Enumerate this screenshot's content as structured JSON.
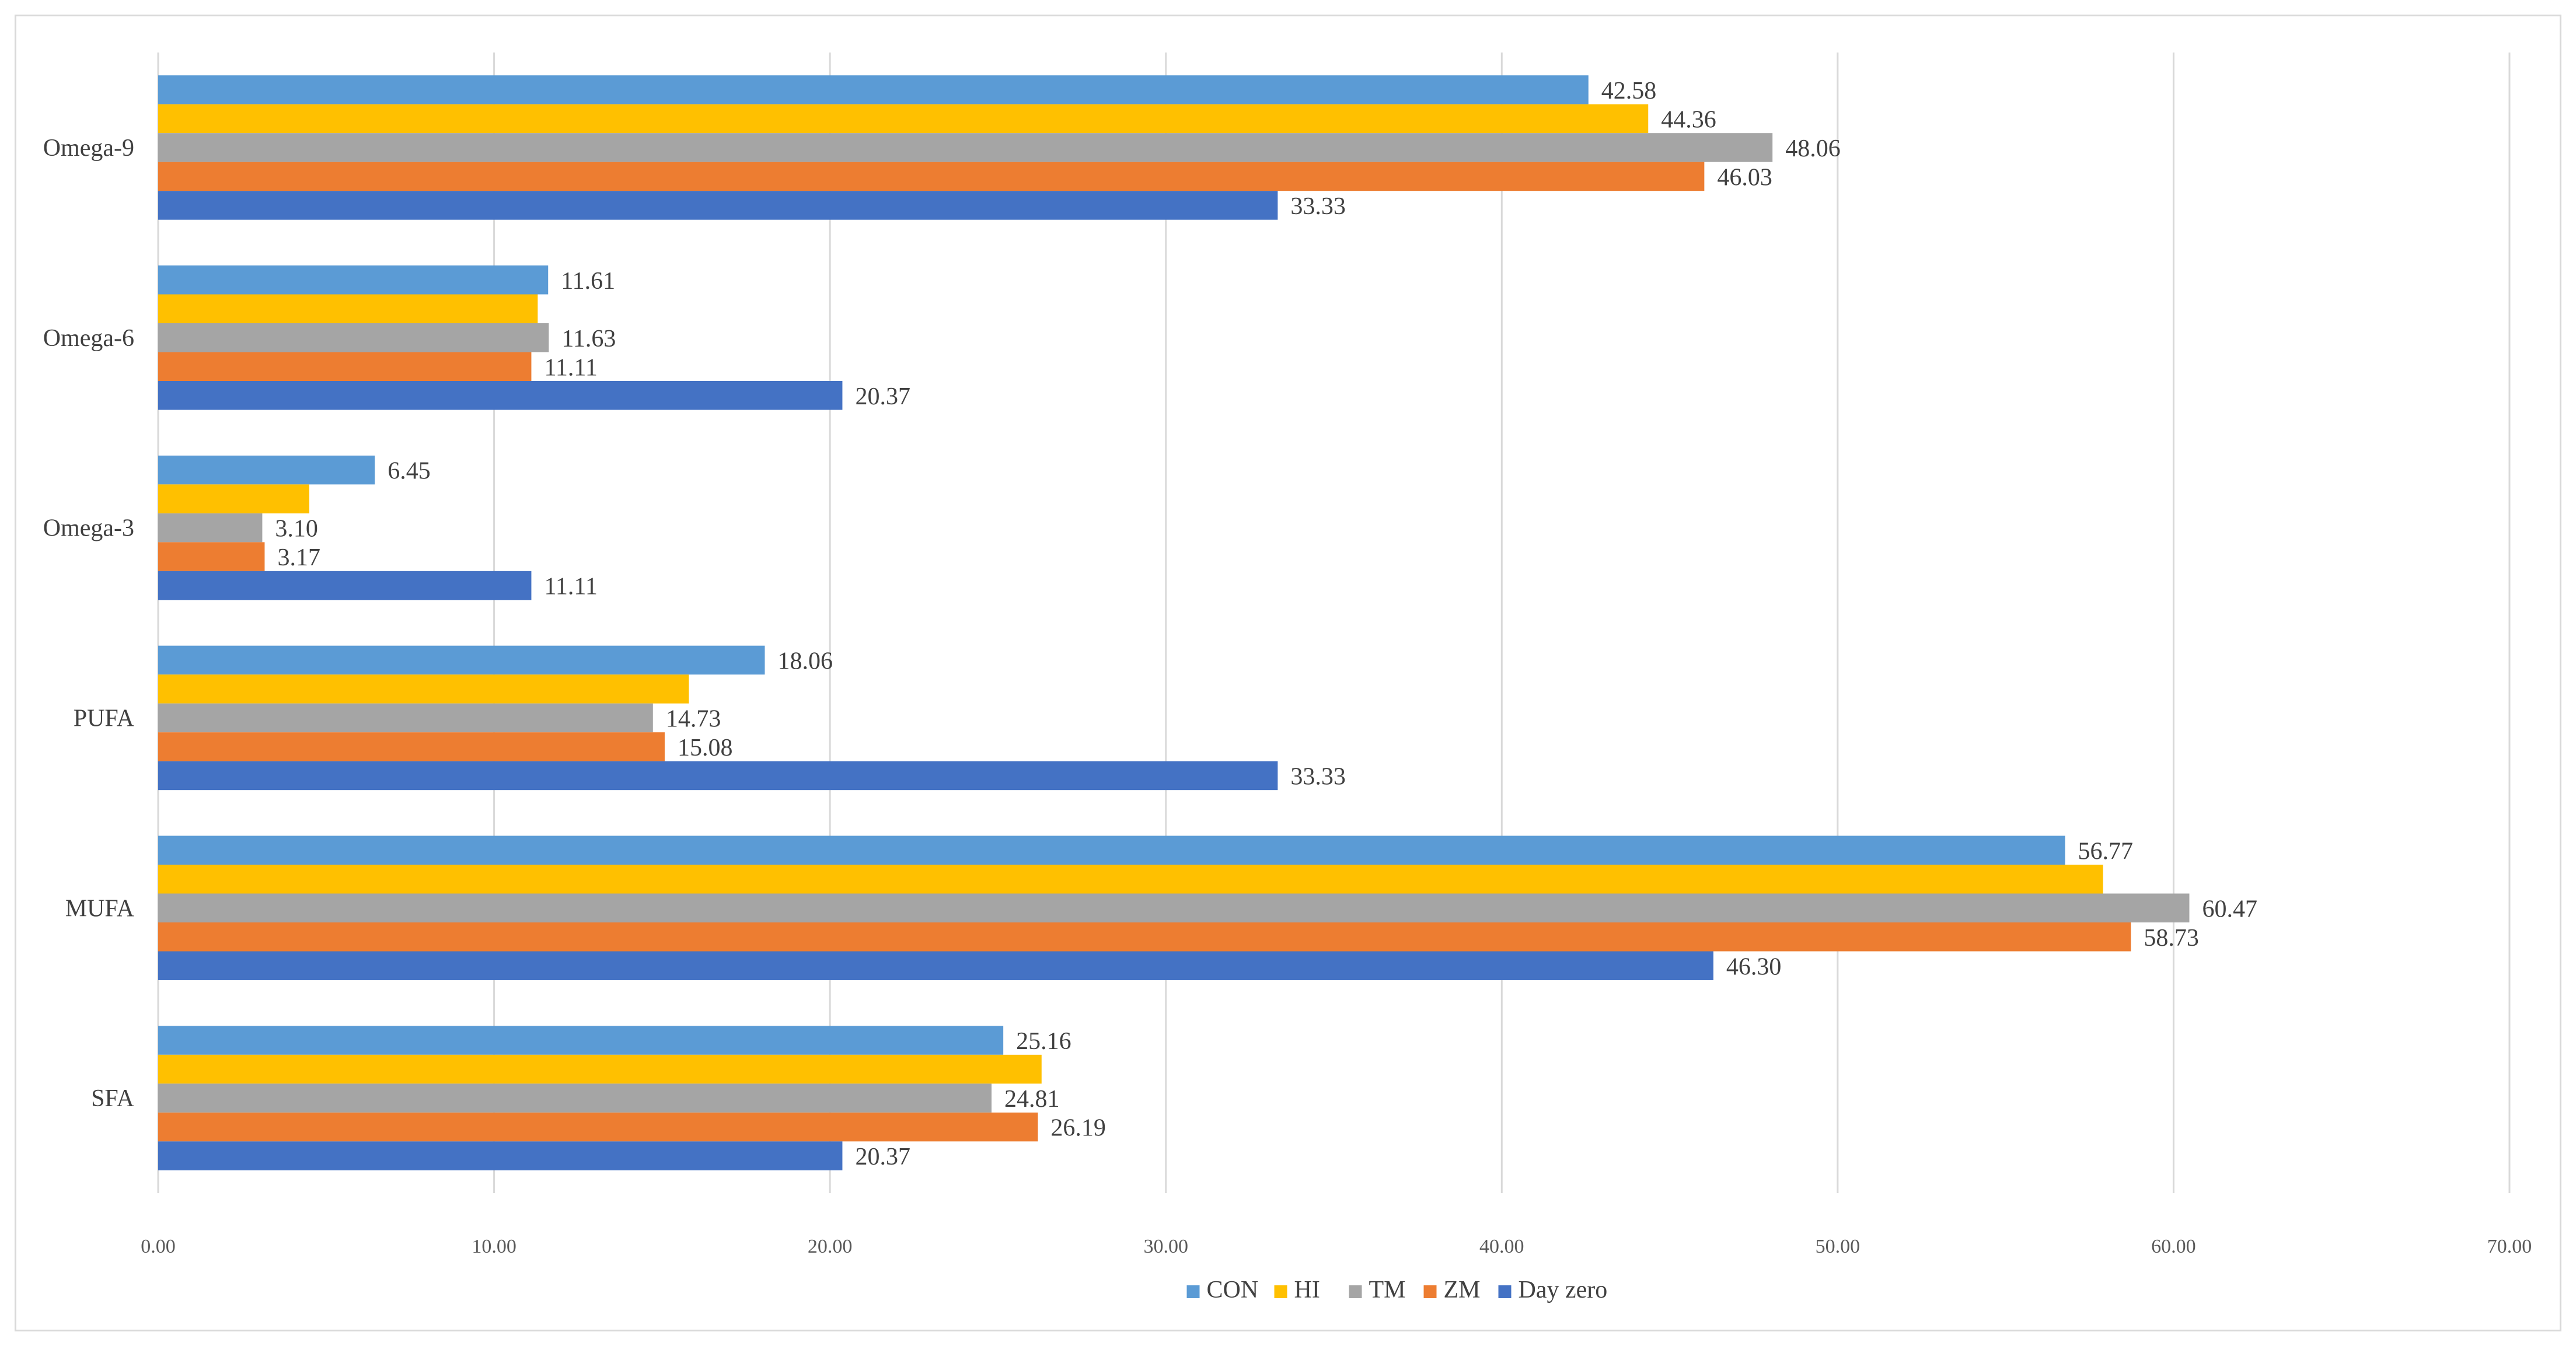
{
  "chart_data": {
    "type": "bar",
    "orientation": "horizontal",
    "title": "",
    "xlabel": "",
    "ylabel": "",
    "categories": [
      "SFA",
      "MUFA",
      "PUFA",
      "Omega-3",
      "Omega-6",
      "Omega-9"
    ],
    "xlim": [
      0,
      70
    ],
    "xticks": [
      "0.00",
      "10.00",
      "20.00",
      "30.00",
      "40.00",
      "50.00",
      "60.00",
      "70.00"
    ],
    "grid": true,
    "legend_position": "bottom",
    "series": [
      {
        "name": "CON",
        "color": "#5B9BD5",
        "values": [
          25.16,
          56.77,
          18.06,
          6.45,
          11.61,
          42.58
        ],
        "labels": [
          "25.16",
          "56.77",
          "18.06",
          "6.45",
          "11.61",
          "42.58"
        ]
      },
      {
        "name": "HI",
        "color": "#FFC000",
        "values": [
          26.3,
          57.9,
          15.8,
          4.5,
          11.3,
          44.36
        ],
        "labels": [
          "",
          "",
          "",
          "",
          "",
          "44.36"
        ]
      },
      {
        "name": "TM",
        "color": "#A5A5A5",
        "values": [
          24.81,
          60.47,
          14.73,
          3.1,
          11.63,
          48.06
        ],
        "labels": [
          "24.81",
          "60.47",
          "14.73",
          "3.10",
          "11.63",
          "48.06"
        ]
      },
      {
        "name": "ZM",
        "color": "#ED7D31",
        "values": [
          26.19,
          58.73,
          15.08,
          3.17,
          11.11,
          46.03
        ],
        "labels": [
          "26.19",
          "58.73",
          "15.08",
          "3.17",
          "11.11",
          "46.03"
        ]
      },
      {
        "name": "Day zero",
        "color": "#4472C4",
        "values": [
          20.37,
          46.3,
          33.33,
          11.11,
          20.37,
          33.33
        ],
        "labels": [
          "20.37",
          "46.30",
          "33.33",
          "11.11",
          "20.37",
          "33.33"
        ]
      }
    ]
  }
}
